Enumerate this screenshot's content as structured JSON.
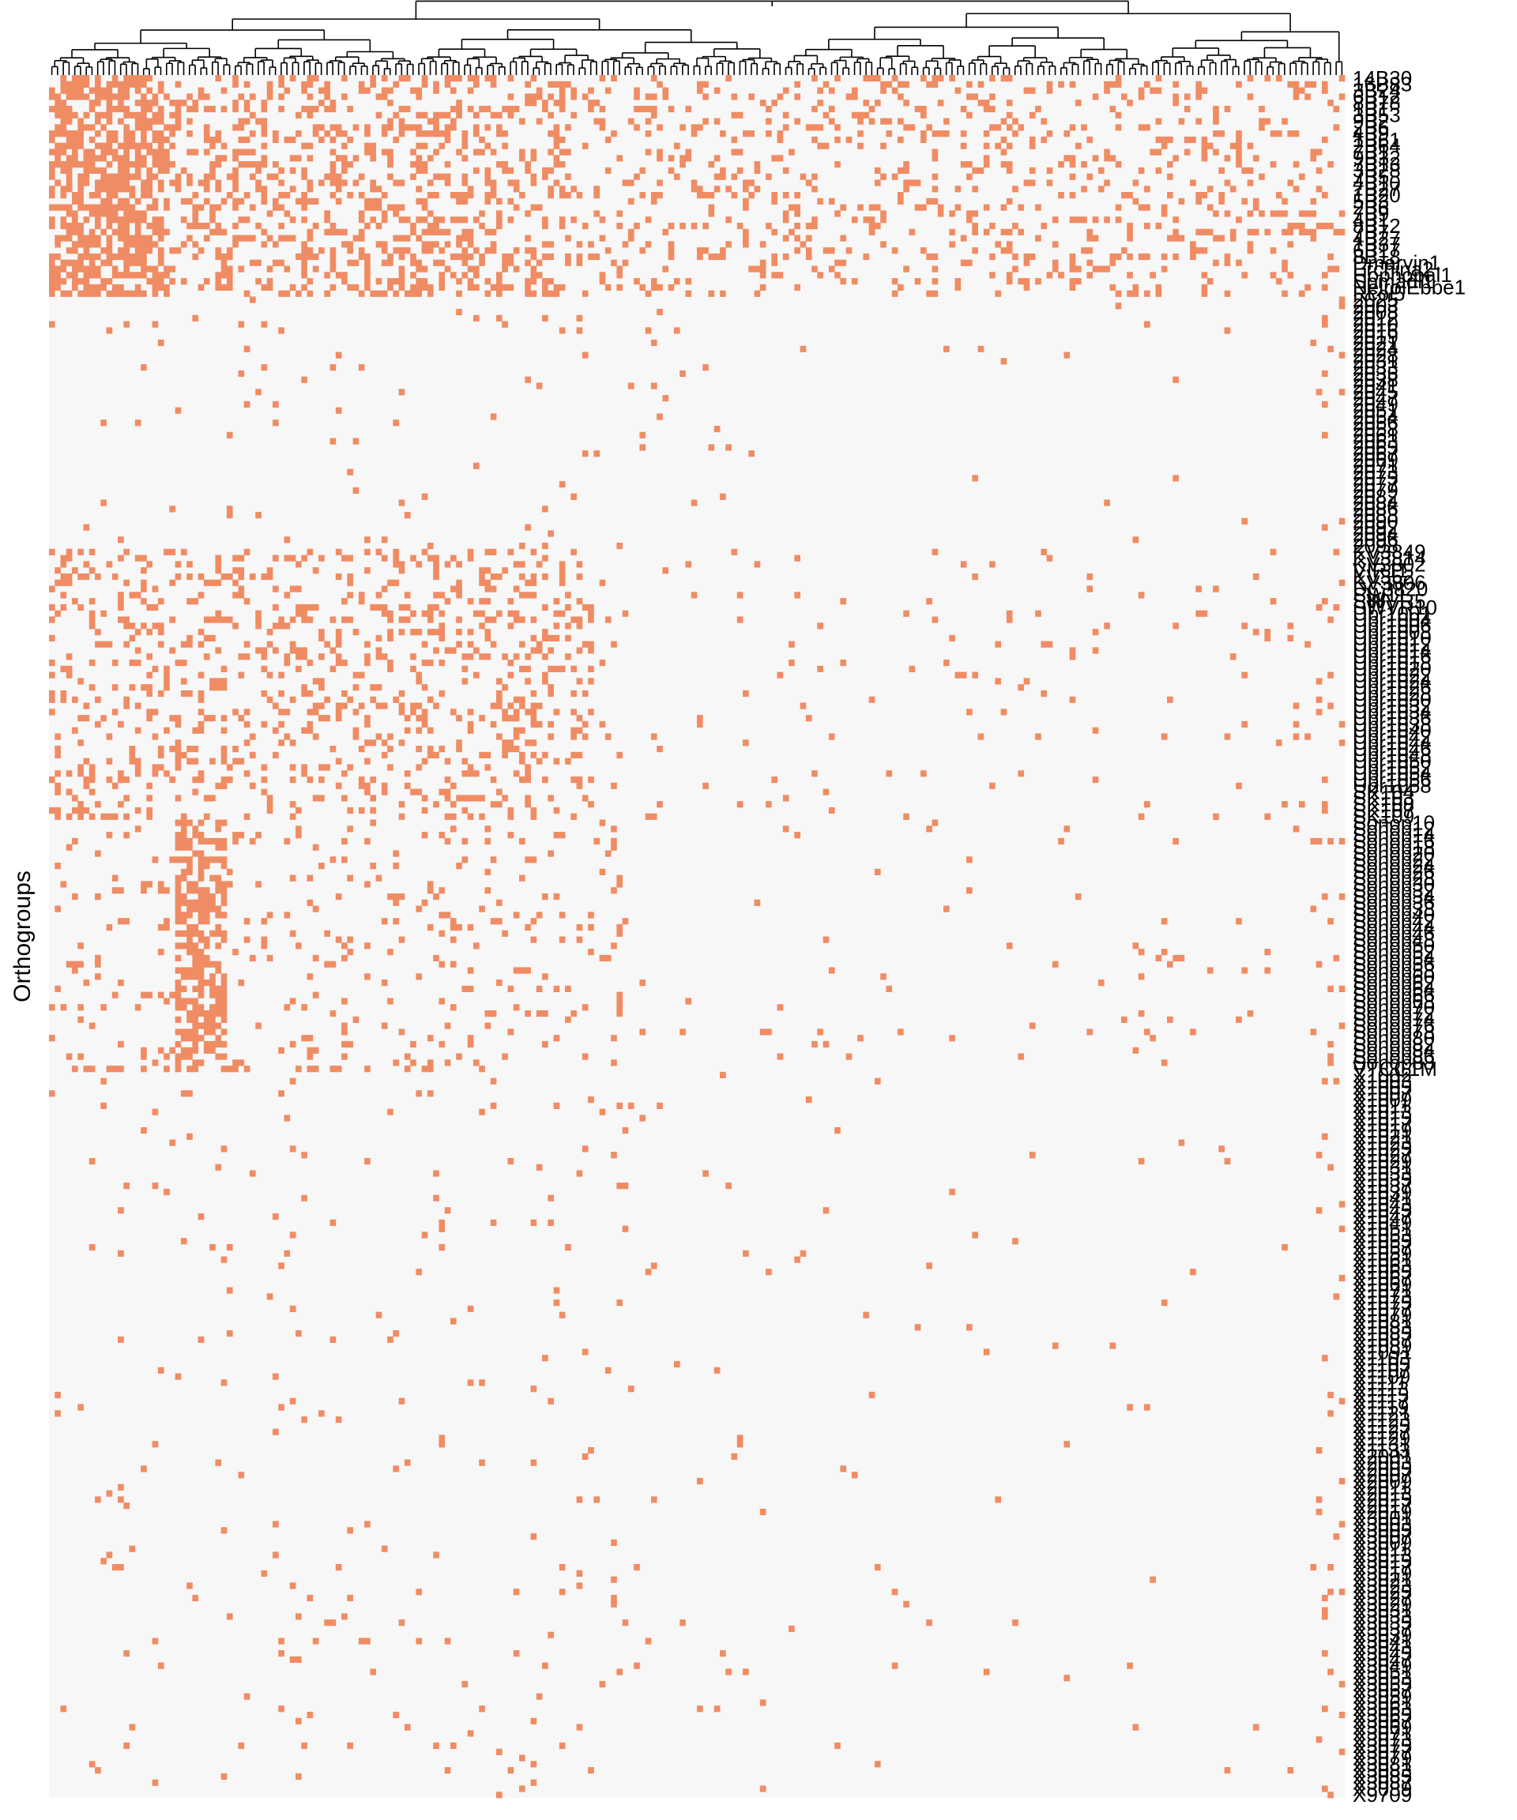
{
  "chart_data": {
    "type": "heatmap",
    "title": "",
    "ylabel": "Orthogroups",
    "xlabel": "",
    "columns": 226,
    "colors": {
      "present": "#f08c64",
      "absent": "#f7f7f7",
      "dendrogram": "#000000"
    },
    "legend": "none",
    "dendrogram": "top",
    "binary_values": [
      0,
      1
    ],
    "row_labels": [
      "14B30",
      "16B83",
      "3B24",
      "6B12",
      "8B78",
      "1B1",
      "3B53",
      "9B2",
      "2B6",
      "4B9",
      "1B61",
      "2B64",
      "7B1",
      "9B32",
      "7B13",
      "3B28",
      "7B5",
      "4B10",
      "7B27",
      "1B20",
      "5B3",
      "2B6",
      "7B9",
      "4B1",
      "8B12",
      "7B7",
      "4B27",
      "1B37",
      "6B17",
      "8B18",
      "Dmarvin1",
      "Erchina2",
      "Hophopal1",
      "Spmadl1",
      "NeirolEbbe1",
      "Rcol5",
      "2025",
      "2003",
      "2008",
      "2012",
      "2010",
      "2016",
      "2019",
      "2021",
      "2024",
      "2028",
      "2031",
      "2033",
      "2035",
      "2038",
      "2041",
      "2045",
      "2047",
      "2049",
      "2051",
      "2054",
      "2056",
      "2058",
      "2061",
      "2063",
      "2065",
      "2067",
      "2069",
      "2071",
      "2073",
      "2075",
      "2077",
      "2079",
      "2082",
      "2084",
      "2086",
      "2088",
      "2090",
      "2092",
      "2094",
      "2096",
      "2098",
      "KV3849",
      "KV3814",
      "KV3802",
      "VIR11",
      "KV352",
      "KV3806",
      "DC3820",
      "SW11",
      "SWVR5",
      "SWVR10",
      "Ubr1001",
      "Ubr1004",
      "Ubr1006",
      "Ubr1008",
      "Ubr1010",
      "Ubr1012",
      "Ubr1014",
      "Ubr1016",
      "Ubr1018",
      "Ubr1020",
      "Ubr1022",
      "Ubr1024",
      "Ubr1026",
      "Ubr1028",
      "Ubr1030",
      "Ubr1032",
      "Ubr1034",
      "Ubr1036",
      "Ubr1038",
      "Ubr1040",
      "Ubr1042",
      "Ubr1044",
      "Ubr1046",
      "Ubr1048",
      "Ubr1050",
      "Ubr1052",
      "Ubr1054",
      "Ubr1056",
      "Ubr1058",
      "SK104",
      "SK103",
      "SK108",
      "SK107",
      "SK109",
      "Sonop10",
      "Sonop12",
      "Sonop14",
      "Sonop16",
      "Sonop18",
      "Sonop20",
      "Sonop22",
      "Sonop24",
      "Sonop26",
      "Sonop28",
      "Sonop30",
      "Sonop32",
      "Sonop34",
      "Sonop36",
      "Sonop38",
      "Sonop40",
      "Sonop42",
      "Sonop44",
      "Sonop46",
      "Sonop48",
      "Sonop50",
      "Sonop52",
      "Sonop54",
      "Sonop56",
      "Sonop58",
      "Sonop60",
      "Sonop62",
      "Sonop64",
      "Sonop66",
      "Sonop68",
      "Sonop70",
      "Sonop72",
      "Sonop74",
      "Sonop76",
      "Sonop78",
      "Sonop80",
      "Sonop82",
      "Sonop84",
      "Sonop86",
      "Sonop88",
      "VTCC1M",
      "X1002",
      "X1003",
      "X1005",
      "X1007",
      "X1009",
      "X1011",
      "X1013",
      "X1015",
      "X1017",
      "X1019",
      "X1021",
      "X1023",
      "X1025",
      "X1027",
      "X1029",
      "X1031",
      "X1033",
      "X1035",
      "X1037",
      "X1039",
      "X1041",
      "X1043",
      "X1045",
      "X1047",
      "X1049",
      "X1051",
      "X1053",
      "X1055",
      "X1057",
      "X1059",
      "X1061",
      "X1063",
      "X1065",
      "X1067",
      "X1069",
      "X1071",
      "X1073",
      "X1075",
      "X1077",
      "X1079",
      "X1081",
      "X1083",
      "X1085",
      "X1087",
      "X1089",
      "X1091",
      "X1103",
      "X1105",
      "X1107",
      "X1109",
      "X1111",
      "X1113",
      "X1115",
      "X1117",
      "X1119",
      "X1121",
      "X1123",
      "X1125",
      "X1127",
      "X1129",
      "X1131",
      "X1133",
      "X2001",
      "X2003",
      "X2005",
      "X2007",
      "X2009",
      "X2011",
      "X2013",
      "X2015",
      "X2017",
      "X2019",
      "X3001",
      "X3003",
      "X3005",
      "X3007",
      "X3009",
      "X3011",
      "X3013",
      "X3015",
      "X3017",
      "X3019",
      "X3021",
      "X3023",
      "X3025",
      "X3027",
      "X3029",
      "X3031",
      "X3033",
      "X3035",
      "X3037",
      "X3039",
      "X3041",
      "X3043",
      "X3045",
      "X3047",
      "X3049",
      "X3051",
      "X3053",
      "X3055",
      "X3057",
      "X3059",
      "X3061",
      "X3063",
      "X3065",
      "X3067",
      "X3069",
      "X3071",
      "X3073",
      "X3075",
      "X3077",
      "X3079",
      "X3081",
      "X3083",
      "X3085",
      "X3087",
      "X3089",
      "X9709"
    ]
  }
}
